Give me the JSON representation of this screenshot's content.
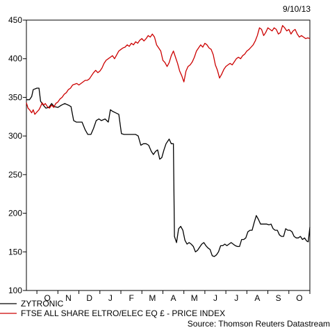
{
  "date_stamp": "9/10/13",
  "source": "Source: Thomson Reuters Datastream",
  "chart_data": {
    "type": "line",
    "ylim": [
      100,
      450
    ],
    "y_ticks": [
      100,
      150,
      200,
      250,
      300,
      350,
      400,
      450
    ],
    "x_ticks": [
      "O",
      "N",
      "D",
      "J",
      "F",
      "M",
      "A",
      "M",
      "J",
      "J",
      "A",
      "S",
      "O"
    ],
    "x_range_weeks": [
      0,
      54
    ],
    "grid": false,
    "legend_position": "bottom-left",
    "series": [
      {
        "name": "ZYTRONIC",
        "color": "#000000",
        "points": [
          [
            0,
            347
          ],
          [
            0.6,
            347
          ],
          [
            1,
            351
          ],
          [
            1.3,
            360
          ],
          [
            2,
            362
          ],
          [
            2.4,
            362
          ],
          [
            2.7,
            345
          ],
          [
            3.2,
            340
          ],
          [
            3.7,
            336
          ],
          [
            4.3,
            337
          ],
          [
            4.8,
            342
          ],
          [
            5.3,
            338
          ],
          [
            6,
            337
          ],
          [
            6.7,
            340
          ],
          [
            7.3,
            342
          ],
          [
            8,
            340
          ],
          [
            8.5,
            338
          ],
          [
            9,
            320
          ],
          [
            9.5,
            318
          ],
          [
            10,
            318
          ],
          [
            10.6,
            318
          ],
          [
            11.2,
            308
          ],
          [
            11.7,
            302
          ],
          [
            12.3,
            302
          ],
          [
            12.8,
            310
          ],
          [
            13.3,
            320
          ],
          [
            13.8,
            322
          ],
          [
            14.3,
            320
          ],
          [
            15,
            322
          ],
          [
            15.6,
            318
          ],
          [
            16,
            334
          ],
          [
            16.4,
            332
          ],
          [
            17,
            330
          ],
          [
            17.6,
            328
          ],
          [
            18.1,
            303
          ],
          [
            18.6,
            302
          ],
          [
            19.2,
            302
          ],
          [
            19.7,
            302
          ],
          [
            20.3,
            302
          ],
          [
            20.8,
            302
          ],
          [
            21.3,
            300
          ],
          [
            21.8,
            288
          ],
          [
            22.3,
            290
          ],
          [
            22.8,
            290
          ],
          [
            23.3,
            288
          ],
          [
            23.8,
            280
          ],
          [
            24.2,
            276
          ],
          [
            24.6,
            280
          ],
          [
            25,
            282
          ],
          [
            25.4,
            270
          ],
          [
            25.8,
            272
          ],
          [
            26.2,
            282
          ],
          [
            26.6,
            290
          ],
          [
            27.2,
            296
          ],
          [
            27.6,
            290
          ],
          [
            28,
            290
          ],
          [
            28.2,
            170
          ],
          [
            28.6,
            162
          ],
          [
            29,
            180
          ],
          [
            29.4,
            183
          ],
          [
            29.8,
            178
          ],
          [
            30.2,
            165
          ],
          [
            30.6,
            160
          ],
          [
            31,
            162
          ],
          [
            31.4,
            160
          ],
          [
            31.8,
            157
          ],
          [
            32.2,
            150
          ],
          [
            32.6,
            152
          ],
          [
            33,
            156
          ],
          [
            33.4,
            160
          ],
          [
            33.8,
            162
          ],
          [
            34.2,
            158
          ],
          [
            34.6,
            155
          ],
          [
            35,
            153
          ],
          [
            35.4,
            145
          ],
          [
            35.8,
            144
          ],
          [
            36.2,
            146
          ],
          [
            36.6,
            150
          ],
          [
            37,
            158
          ],
          [
            37.4,
            158
          ],
          [
            37.8,
            160
          ],
          [
            38.2,
            158
          ],
          [
            38.6,
            160
          ],
          [
            39,
            162
          ],
          [
            39.4,
            160
          ],
          [
            39.8,
            158
          ],
          [
            40.2,
            157
          ],
          [
            40.6,
            157
          ],
          [
            41,
            166
          ],
          [
            41.4,
            166
          ],
          [
            41.8,
            168
          ],
          [
            42.2,
            176
          ],
          [
            42.6,
            178
          ],
          [
            43,
            178
          ],
          [
            43.4,
            188
          ],
          [
            43.8,
            197
          ],
          [
            44.2,
            192
          ],
          [
            44.6,
            186
          ],
          [
            45,
            186
          ],
          [
            45.4,
            186
          ],
          [
            45.8,
            186
          ],
          [
            46.2,
            185
          ],
          [
            46.6,
            186
          ],
          [
            47,
            180
          ],
          [
            47.4,
            178
          ],
          [
            47.8,
            178
          ],
          [
            48.2,
            172
          ],
          [
            48.6,
            170
          ],
          [
            49,
            170
          ],
          [
            49.4,
            180
          ],
          [
            49.8,
            178
          ],
          [
            50.2,
            178
          ],
          [
            50.6,
            176
          ],
          [
            51,
            170
          ],
          [
            51.4,
            168
          ],
          [
            51.8,
            168
          ],
          [
            52.2,
            170
          ],
          [
            52.6,
            166
          ],
          [
            53,
            168
          ],
          [
            53.4,
            164
          ],
          [
            53.7,
            163
          ],
          [
            54,
            182
          ]
        ]
      },
      {
        "name": "FTSE ALL SHARE ELTRO/ELEC EQ £ - PRICE INDEX",
        "color": "#cc0000",
        "points": [
          [
            0,
            343
          ],
          [
            0.3,
            336
          ],
          [
            0.6,
            334
          ],
          [
            1,
            330
          ],
          [
            1.3,
            334
          ],
          [
            1.6,
            328
          ],
          [
            2,
            331
          ],
          [
            2.4,
            334
          ],
          [
            2.7,
            338
          ],
          [
            3,
            343
          ],
          [
            3.3,
            340
          ],
          [
            3.6,
            342
          ],
          [
            4,
            338
          ],
          [
            4.4,
            336
          ],
          [
            4.8,
            340
          ],
          [
            5.2,
            337
          ],
          [
            5.6,
            342
          ],
          [
            6,
            344
          ],
          [
            6.4,
            348
          ],
          [
            6.8,
            350
          ],
          [
            7.2,
            354
          ],
          [
            7.6,
            356
          ],
          [
            8,
            360
          ],
          [
            8.4,
            362
          ],
          [
            8.8,
            366
          ],
          [
            9.2,
            367
          ],
          [
            9.6,
            368
          ],
          [
            10,
            366
          ],
          [
            10.4,
            368
          ],
          [
            10.8,
            370
          ],
          [
            11.2,
            372
          ],
          [
            11.6,
            372
          ],
          [
            12,
            374
          ],
          [
            12.4,
            378
          ],
          [
            12.8,
            382
          ],
          [
            13.2,
            385
          ],
          [
            13.6,
            382
          ],
          [
            14,
            384
          ],
          [
            14.4,
            388
          ],
          [
            14.8,
            394
          ],
          [
            15.2,
            398
          ],
          [
            15.6,
            400
          ],
          [
            16,
            402
          ],
          [
            16.4,
            404
          ],
          [
            16.8,
            400
          ],
          [
            17.2,
            405
          ],
          [
            17.6,
            410
          ],
          [
            18,
            412
          ],
          [
            18.4,
            414
          ],
          [
            18.8,
            415
          ],
          [
            19.2,
            418
          ],
          [
            19.6,
            416
          ],
          [
            20,
            420
          ],
          [
            20.4,
            418
          ],
          [
            20.8,
            422
          ],
          [
            21.2,
            420
          ],
          [
            21.6,
            424
          ],
          [
            22,
            426
          ],
          [
            22.4,
            423
          ],
          [
            22.8,
            426
          ],
          [
            23.2,
            430
          ],
          [
            23.6,
            428
          ],
          [
            24,
            432
          ],
          [
            24.4,
            428
          ],
          [
            24.8,
            418
          ],
          [
            25.2,
            414
          ],
          [
            25.6,
            410
          ],
          [
            26,
            398
          ],
          [
            26.4,
            395
          ],
          [
            26.8,
            390
          ],
          [
            27.2,
            395
          ],
          [
            27.6,
            404
          ],
          [
            28,
            410
          ],
          [
            28.4,
            402
          ],
          [
            28.8,
            394
          ],
          [
            29.2,
            384
          ],
          [
            29.6,
            378
          ],
          [
            30,
            370
          ],
          [
            30.4,
            384
          ],
          [
            30.8,
            390
          ],
          [
            31.2,
            392
          ],
          [
            31.6,
            396
          ],
          [
            32,
            402
          ],
          [
            32.4,
            410
          ],
          [
            32.8,
            414
          ],
          [
            33.2,
            418
          ],
          [
            33.6,
            415
          ],
          [
            34,
            420
          ],
          [
            34.4,
            418
          ],
          [
            34.8,
            414
          ],
          [
            35.2,
            412
          ],
          [
            35.6,
            405
          ],
          [
            36,
            392
          ],
          [
            36.4,
            385
          ],
          [
            36.8,
            375
          ],
          [
            37.2,
            380
          ],
          [
            37.6,
            386
          ],
          [
            38,
            390
          ],
          [
            38.4,
            392
          ],
          [
            38.8,
            394
          ],
          [
            39.2,
            392
          ],
          [
            39.6,
            396
          ],
          [
            40,
            400
          ],
          [
            40.4,
            402
          ],
          [
            40.8,
            400
          ],
          [
            41.2,
            404
          ],
          [
            41.6,
            406
          ],
          [
            42,
            410
          ],
          [
            42.4,
            412
          ],
          [
            42.8,
            415
          ],
          [
            43.2,
            418
          ],
          [
            43.6,
            423
          ],
          [
            44,
            430
          ],
          [
            44.4,
            440
          ],
          [
            44.8,
            438
          ],
          [
            45.2,
            430
          ],
          [
            45.6,
            434
          ],
          [
            46,
            440
          ],
          [
            46.4,
            438
          ],
          [
            46.8,
            436
          ],
          [
            47.2,
            440
          ],
          [
            47.6,
            438
          ],
          [
            48,
            432
          ],
          [
            48.4,
            434
          ],
          [
            48.8,
            443
          ],
          [
            49.2,
            440
          ],
          [
            49.6,
            436
          ],
          [
            50,
            438
          ],
          [
            50.4,
            432
          ],
          [
            50.8,
            436
          ],
          [
            51.2,
            438
          ],
          [
            51.6,
            432
          ],
          [
            52,
            428
          ],
          [
            52.4,
            430
          ],
          [
            52.8,
            428
          ],
          [
            53.2,
            426
          ],
          [
            53.6,
            427
          ],
          [
            54,
            426
          ]
        ]
      }
    ]
  }
}
